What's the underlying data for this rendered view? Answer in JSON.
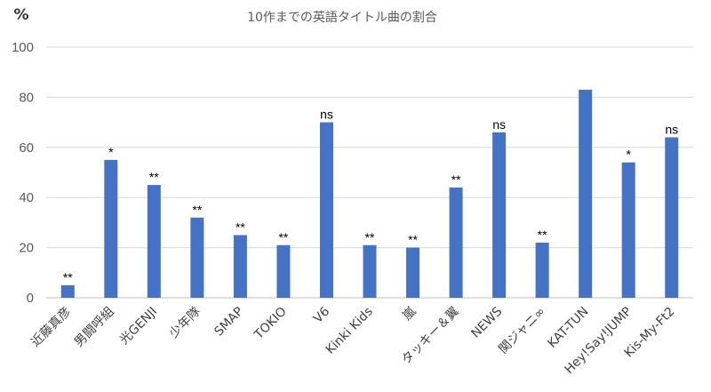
{
  "chart_data": {
    "type": "bar",
    "title": "10作までの英語タイトル曲の割合",
    "ylabel": "%",
    "xlabel": "",
    "ylim": [
      0,
      100
    ],
    "yticks": [
      0,
      20,
      40,
      60,
      80,
      100
    ],
    "grid": true,
    "legend": "none",
    "bar_color": "#4472c4",
    "categories": [
      "近藤真彦",
      "男闘呼組",
      "光GENJI",
      "少年隊",
      "SMAP",
      "TOKIO",
      "V6",
      "Kinki Kids",
      "嵐",
      "タッキー＆翼",
      "NEWS",
      "関ジャニ∞",
      "KAT-TUN",
      "Hey!Say!JUMP",
      "Kis-My-Ft2"
    ],
    "values": [
      5,
      55,
      45,
      32,
      25,
      21,
      70,
      21,
      20,
      44,
      66,
      22,
      83,
      54,
      64
    ],
    "annotations": [
      "**",
      "*",
      "**",
      "**",
      "**",
      "**",
      "ns",
      "**",
      "**",
      "**",
      "ns",
      "**",
      "",
      "*",
      "ns"
    ]
  }
}
